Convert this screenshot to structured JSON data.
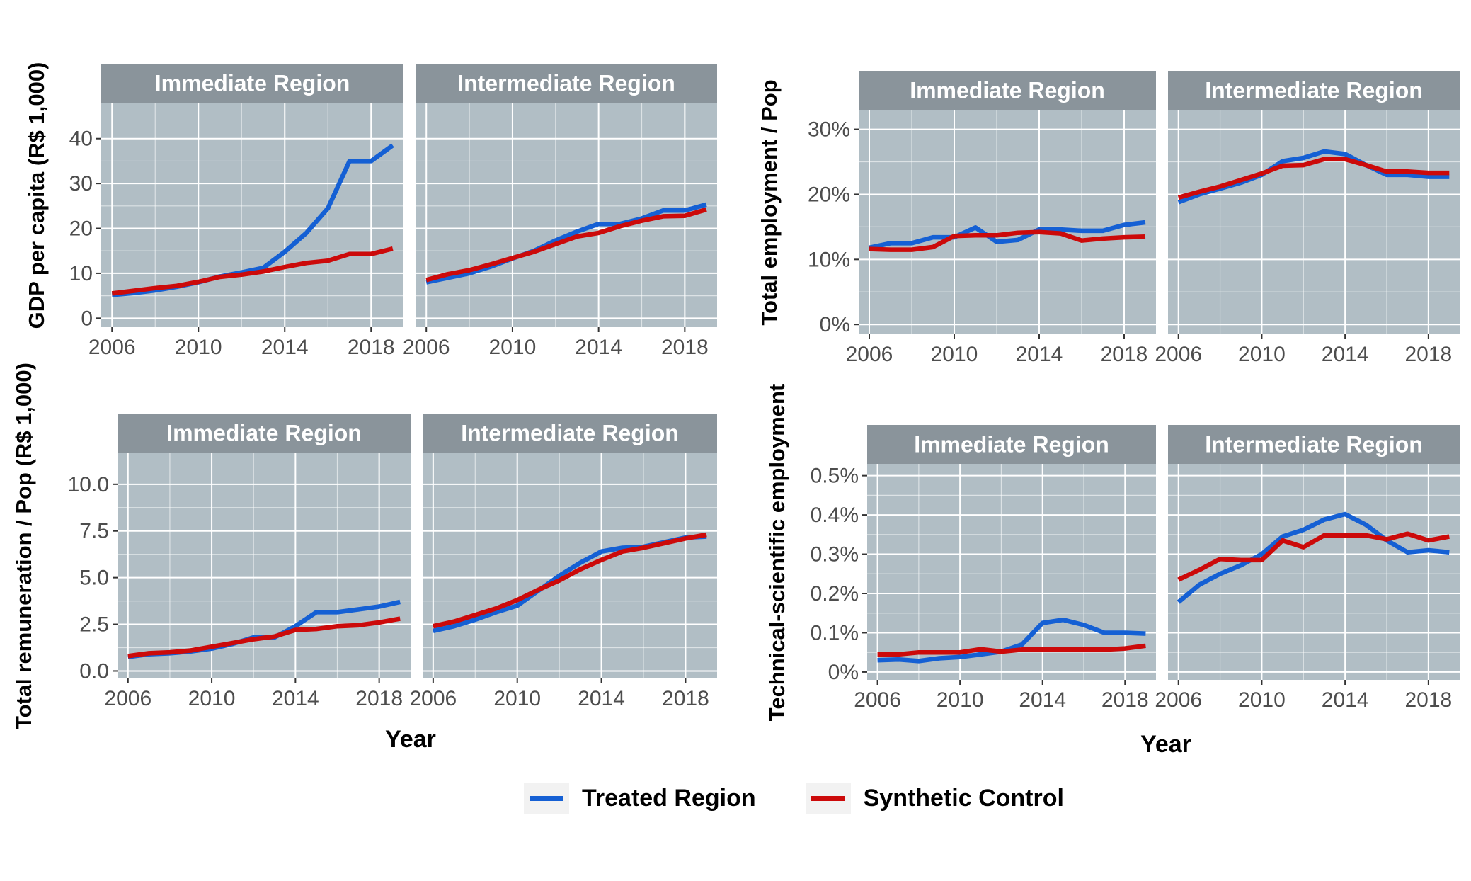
{
  "legend": {
    "treated_label": "Treated Region",
    "synthetic_label": "Synthetic Control",
    "treated_color": "#1560d4",
    "synthetic_color": "#cc0a0a"
  },
  "colors": {
    "panel_bg": "#b1bec5",
    "strip_bg": "#8a949b",
    "grid": "#ffffff"
  },
  "chart_data": [
    {
      "type": "line",
      "ylabel": "GDP per capita (R$ 1,000)",
      "xlabel": "",
      "xlim": [
        2005.5,
        2019.5
      ],
      "ylim": [
        -2,
        48
      ],
      "x_ticks": [
        2006,
        2010,
        2014,
        2018
      ],
      "y_ticks": [
        0,
        10,
        20,
        30,
        40
      ],
      "y_tick_labels": [
        "0",
        "10",
        "20",
        "30",
        "40"
      ],
      "x_tick_labels": [
        "2006",
        "2010",
        "2014",
        "2018"
      ],
      "facets": [
        {
          "title": "Immediate Region",
          "x": [
            2006,
            2007,
            2008,
            2009,
            2010,
            2011,
            2012,
            2013,
            2014,
            2015,
            2016,
            2017,
            2018,
            2019
          ],
          "series": [
            {
              "name": "Treated Region",
              "values": [
                5.2,
                5.6,
                6.2,
                7.0,
                8.0,
                9.3,
                10.2,
                11.2,
                14.8,
                19.0,
                24.5,
                35.0,
                35.0,
                38.5
              ]
            },
            {
              "name": "Synthetic Control",
              "values": [
                5.5,
                6.1,
                6.7,
                7.2,
                8.1,
                9.2,
                9.7,
                10.4,
                11.4,
                12.3,
                12.8,
                14.3,
                14.3,
                15.5
              ]
            }
          ]
        },
        {
          "title": "Intermediate Region",
          "x": [
            2006,
            2007,
            2008,
            2009,
            2010,
            2011,
            2012,
            2013,
            2014,
            2015,
            2016,
            2017,
            2018,
            2019
          ],
          "series": [
            {
              "name": "Treated Region",
              "values": [
                8.0,
                9.0,
                10.0,
                11.5,
                13.3,
                15.0,
                17.3,
                19.3,
                21.0,
                21.0,
                22.2,
                24.0,
                24.0,
                25.3
              ]
            },
            {
              "name": "Synthetic Control",
              "values": [
                8.5,
                9.8,
                10.7,
                12.0,
                13.4,
                14.8,
                16.5,
                18.2,
                19.0,
                20.5,
                21.7,
                22.7,
                22.8,
                24.2
              ]
            }
          ]
        }
      ]
    },
    {
      "type": "line",
      "ylabel": "Total employment / Pop",
      "xlabel": "",
      "xlim": [
        2005.5,
        2019.5
      ],
      "ylim": [
        -0.015,
        0.33
      ],
      "x_ticks": [
        2006,
        2010,
        2014,
        2018
      ],
      "y_ticks": [
        0,
        0.1,
        0.2,
        0.3
      ],
      "y_tick_labels": [
        "0%",
        "10%",
        "20%",
        "30%"
      ],
      "x_tick_labels": [
        "2006",
        "2010",
        "2014",
        "2018"
      ],
      "facets": [
        {
          "title": "Immediate Region",
          "x": [
            2006,
            2007,
            2008,
            2009,
            2010,
            2011,
            2012,
            2013,
            2014,
            2015,
            2016,
            2017,
            2018,
            2019
          ],
          "series": [
            {
              "name": "Treated Region",
              "values": [
                0.118,
                0.125,
                0.125,
                0.134,
                0.134,
                0.149,
                0.127,
                0.13,
                0.146,
                0.146,
                0.144,
                0.144,
                0.153,
                0.157
              ]
            },
            {
              "name": "Synthetic Control",
              "values": [
                0.116,
                0.115,
                0.115,
                0.119,
                0.136,
                0.137,
                0.137,
                0.141,
                0.142,
                0.14,
                0.129,
                0.132,
                0.134,
                0.135
              ]
            }
          ]
        },
        {
          "title": "Intermediate Region",
          "x": [
            2006,
            2007,
            2008,
            2009,
            2010,
            2011,
            2012,
            2013,
            2014,
            2015,
            2016,
            2017,
            2018,
            2019
          ],
          "series": [
            {
              "name": "Treated Region",
              "values": [
                0.188,
                0.2,
                0.209,
                0.218,
                0.23,
                0.251,
                0.256,
                0.266,
                0.262,
                0.245,
                0.23,
                0.23,
                0.227,
                0.227
              ]
            },
            {
              "name": "Synthetic Control",
              "values": [
                0.195,
                0.204,
                0.212,
                0.222,
                0.232,
                0.244,
                0.245,
                0.254,
                0.254,
                0.245,
                0.235,
                0.235,
                0.233,
                0.233
              ]
            }
          ]
        }
      ]
    },
    {
      "type": "line",
      "ylabel": "Total remuneration / Pop (R$ 1,000)",
      "xlabel": "Year",
      "xlim": [
        2005.5,
        2019.5
      ],
      "ylim": [
        -0.4,
        11.7
      ],
      "x_ticks": [
        2006,
        2010,
        2014,
        2018
      ],
      "y_ticks": [
        0,
        2.5,
        5.0,
        7.5,
        10.0
      ],
      "y_tick_labels": [
        "0.0",
        "2.5",
        "5.0",
        "7.5",
        "10.0"
      ],
      "x_tick_labels": [
        "2006",
        "2010",
        "2014",
        "2018"
      ],
      "facets": [
        {
          "title": "Immediate Region",
          "x": [
            2006,
            2007,
            2008,
            2009,
            2010,
            2011,
            2012,
            2013,
            2014,
            2015,
            2016,
            2017,
            2018,
            2019
          ],
          "series": [
            {
              "name": "Treated Region",
              "values": [
                0.75,
                0.9,
                0.95,
                1.05,
                1.2,
                1.45,
                1.8,
                1.8,
                2.4,
                3.15,
                3.15,
                3.3,
                3.45,
                3.7
              ]
            },
            {
              "name": "Synthetic Control",
              "values": [
                0.8,
                0.95,
                1.0,
                1.1,
                1.3,
                1.5,
                1.7,
                1.85,
                2.2,
                2.25,
                2.4,
                2.45,
                2.6,
                2.8
              ]
            }
          ]
        },
        {
          "title": "Intermediate Region",
          "x": [
            2006,
            2007,
            2008,
            2009,
            2010,
            2011,
            2012,
            2013,
            2014,
            2015,
            2016,
            2017,
            2018,
            2019
          ],
          "series": [
            {
              "name": "Treated Region",
              "values": [
                2.15,
                2.4,
                2.75,
                3.15,
                3.5,
                4.3,
                5.1,
                5.8,
                6.4,
                6.6,
                6.65,
                6.9,
                7.15,
                7.2
              ]
            },
            {
              "name": "Synthetic Control",
              "values": [
                2.4,
                2.65,
                3.0,
                3.35,
                3.8,
                4.35,
                4.85,
                5.45,
                5.95,
                6.4,
                6.6,
                6.85,
                7.1,
                7.3
              ]
            }
          ]
        }
      ]
    },
    {
      "type": "line",
      "ylabel": "Technical-scientific employment",
      "xlabel": "Year",
      "xlim": [
        2005.5,
        2019.5
      ],
      "ylim": [
        -0.0002,
        0.0053
      ],
      "x_ticks": [
        2006,
        2010,
        2014,
        2018
      ],
      "y_ticks": [
        0,
        0.001,
        0.002,
        0.003,
        0.004,
        0.005
      ],
      "y_tick_labels": [
        "0%",
        "0.1%",
        "0.2%",
        "0.3%",
        "0.4%",
        "0.5%"
      ],
      "x_tick_labels": [
        "2006",
        "2010",
        "2014",
        "2018"
      ],
      "facets": [
        {
          "title": "Immediate Region",
          "x": [
            2006,
            2007,
            2008,
            2009,
            2010,
            2011,
            2012,
            2013,
            2014,
            2015,
            2016,
            2017,
            2018,
            2019
          ],
          "series": [
            {
              "name": "Treated Region",
              "values": [
                0.0003,
                0.00032,
                0.00028,
                0.00035,
                0.00038,
                0.00045,
                0.00052,
                0.0007,
                0.00125,
                0.00133,
                0.0012,
                0.001,
                0.001,
                0.00098
              ]
            },
            {
              "name": "Synthetic Control",
              "values": [
                0.00045,
                0.00045,
                0.0005,
                0.0005,
                0.0005,
                0.00058,
                0.00052,
                0.00057,
                0.00057,
                0.00057,
                0.00057,
                0.00057,
                0.0006,
                0.00067
              ]
            }
          ]
        },
        {
          "title": "Intermediate Region",
          "x": [
            2006,
            2007,
            2008,
            2009,
            2010,
            2011,
            2012,
            2013,
            2014,
            2015,
            2016,
            2017,
            2018,
            2019
          ],
          "series": [
            {
              "name": "Treated Region",
              "values": [
                0.00178,
                0.00222,
                0.0025,
                0.00272,
                0.003,
                0.00345,
                0.00362,
                0.00388,
                0.00402,
                0.00375,
                0.00335,
                0.00305,
                0.0031,
                0.00305
              ]
            },
            {
              "name": "Synthetic Control",
              "values": [
                0.00235,
                0.0026,
                0.00288,
                0.00285,
                0.00285,
                0.00335,
                0.00318,
                0.00348,
                0.00348,
                0.00348,
                0.00338,
                0.00352,
                0.00335,
                0.00345
              ]
            }
          ]
        }
      ]
    }
  ]
}
